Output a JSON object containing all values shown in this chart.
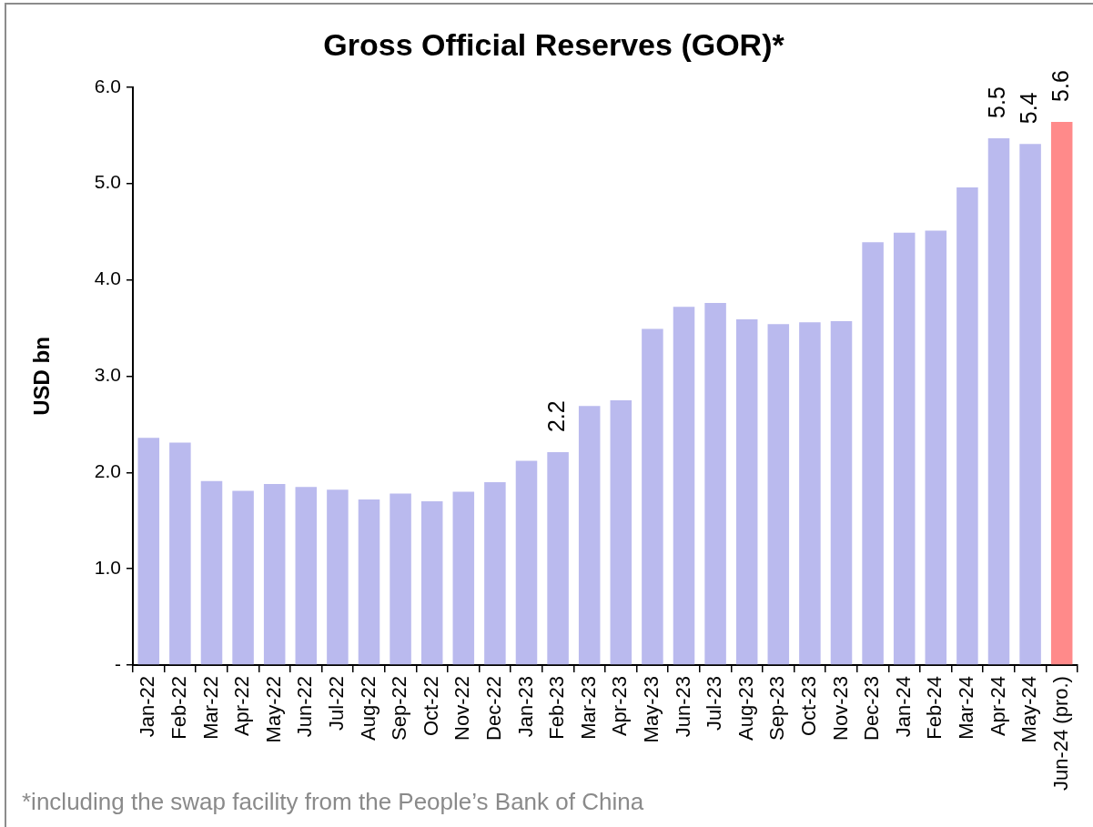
{
  "chart_data": {
    "type": "bar",
    "title": "Gross Official Reserves (GOR)*",
    "ylabel": "USD bn",
    "categories": [
      "Jan-22",
      "Feb-22",
      "Mar-22",
      "Apr-22",
      "May-22",
      "Jun-22",
      "Jul-22",
      "Aug-22",
      "Sep-22",
      "Oct-22",
      "Nov-22",
      "Dec-22",
      "Jan-23",
      "Feb-23",
      "Mar-23",
      "Apr-23",
      "May-23",
      "Jun-23",
      "Jul-23",
      "Aug-23",
      "Sep-23",
      "Oct-23",
      "Nov-23",
      "Dec-23",
      "Jan-24",
      "Feb-24",
      "Mar-24",
      "Apr-24",
      "May-24",
      "Jun-24 (pro.)"
    ],
    "values": [
      2.36,
      2.31,
      1.91,
      1.81,
      1.88,
      1.85,
      1.82,
      1.72,
      1.78,
      1.7,
      1.8,
      1.9,
      2.12,
      2.21,
      2.69,
      2.75,
      3.49,
      3.72,
      3.76,
      3.59,
      3.54,
      3.56,
      3.57,
      4.39,
      4.49,
      4.51,
      4.96,
      5.47,
      5.41,
      5.64
    ],
    "colors": [
      "#babaee",
      "#babaee",
      "#babaee",
      "#babaee",
      "#babaee",
      "#babaee",
      "#babaee",
      "#babaee",
      "#babaee",
      "#babaee",
      "#babaee",
      "#babaee",
      "#babaee",
      "#babaee",
      "#babaee",
      "#babaee",
      "#babaee",
      "#babaee",
      "#babaee",
      "#babaee",
      "#babaee",
      "#babaee",
      "#babaee",
      "#babaee",
      "#babaee",
      "#babaee",
      "#babaee",
      "#babaee",
      "#babaee",
      "#ff8a8a"
    ],
    "value_labels": [
      null,
      null,
      null,
      null,
      null,
      null,
      null,
      null,
      null,
      null,
      null,
      null,
      null,
      "2.2",
      null,
      null,
      null,
      null,
      null,
      null,
      null,
      null,
      null,
      null,
      null,
      null,
      null,
      "5.5",
      "5.4",
      "5.6"
    ],
    "ylim": [
      0,
      6
    ],
    "yticks": [
      {
        "value": 0,
        "label": "-"
      },
      {
        "value": 1,
        "label": "1.0"
      },
      {
        "value": 2,
        "label": "2.0"
      },
      {
        "value": 3,
        "label": "3.0"
      },
      {
        "value": 4,
        "label": "4.0"
      },
      {
        "value": 5,
        "label": "5.0"
      },
      {
        "value": 6,
        "label": "6.0"
      }
    ],
    "annotations": [
      "*including the swap facility from the People’s Bank of China"
    ]
  }
}
